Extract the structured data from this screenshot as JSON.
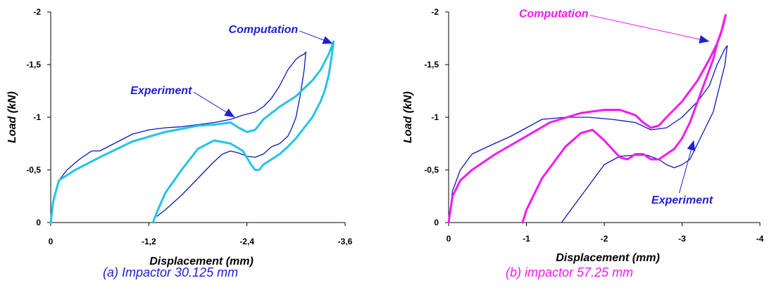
{
  "chart_data": [
    {
      "type": "line",
      "xlabel": "Displacement (mm)",
      "ylabel": "Load (kN)",
      "xlim": [
        0,
        -3.6
      ],
      "ylim": [
        0,
        -2
      ],
      "x_ticks": [
        0,
        -1.2,
        -2.4,
        -3.6
      ],
      "x_tick_labels": [
        "0",
        "-1,2",
        "-2,4",
        "-3,6"
      ],
      "y_ticks": [
        0,
        -0.5,
        -1,
        -1.5,
        -2
      ],
      "y_tick_labels": [
        "0",
        "-0,5",
        "-1",
        "-1,5",
        "-2"
      ],
      "grid": false,
      "caption": "(a) Impactor 30.125 mm",
      "caption_color": "#1F1FD0",
      "annotations": [
        {
          "text": "Computation",
          "color": "#1F1FD0",
          "target_series": "Computation",
          "target": [
            -3.45,
            -1.7
          ],
          "label_at": [
            -2.6,
            -1.8
          ]
        },
        {
          "text": "Experiment",
          "color": "#1F1FD0",
          "target_series": "Experiment",
          "target": [
            -2.25,
            -1.0
          ],
          "label_at": [
            -1.35,
            -1.22
          ]
        }
      ],
      "series": [
        {
          "name": "Experiment",
          "color": "#0A1AB4",
          "x": [
            0,
            -0.03,
            -0.1,
            -0.2,
            -0.35,
            -0.5,
            -0.6,
            -0.8,
            -1.0,
            -1.2,
            -1.4,
            -1.6,
            -1.8,
            -2.0,
            -2.2,
            -2.35,
            -2.5,
            -2.6,
            -2.7,
            -2.8,
            -2.9,
            -3.0,
            -3.05,
            -3.1,
            -3.12,
            -3.1,
            -3.05,
            -3.0,
            -2.95,
            -2.9,
            -2.8,
            -2.7,
            -2.6,
            -2.5,
            -2.4,
            -2.3,
            -2.2,
            -2.1,
            -2.0,
            -1.9,
            -1.8,
            -1.6,
            -1.4,
            -1.3
          ],
          "y": [
            0,
            -0.2,
            -0.4,
            -0.5,
            -0.6,
            -0.68,
            -0.68,
            -0.76,
            -0.84,
            -0.88,
            -0.9,
            -0.91,
            -0.93,
            -0.95,
            -0.98,
            -1.02,
            -1.05,
            -1.1,
            -1.18,
            -1.3,
            -1.45,
            -1.55,
            -1.58,
            -1.6,
            -1.62,
            -1.45,
            -1.2,
            -1.0,
            -0.9,
            -0.82,
            -0.75,
            -0.72,
            -0.65,
            -0.62,
            -0.63,
            -0.66,
            -0.68,
            -0.65,
            -0.58,
            -0.5,
            -0.42,
            -0.26,
            -0.12,
            -0.06
          ]
        },
        {
          "name": "Computation",
          "color": "#22C4E8",
          "x": [
            0,
            -0.03,
            -0.1,
            -0.3,
            -0.6,
            -1.0,
            -1.4,
            -1.8,
            -2.0,
            -2.2,
            -2.3,
            -2.4,
            -2.5,
            -2.6,
            -2.8,
            -3.0,
            -3.2,
            -3.3,
            -3.4,
            -3.45,
            -3.46,
            -3.44,
            -3.42,
            -3.4,
            -3.35,
            -3.3,
            -3.2,
            -3.1,
            -3.0,
            -2.9,
            -2.8,
            -2.7,
            -2.6,
            -2.55,
            -2.5,
            -2.45,
            -2.35,
            -2.2,
            -2.0,
            -1.8,
            -1.6,
            -1.4,
            -1.3,
            -1.25
          ],
          "y": [
            0,
            -0.2,
            -0.4,
            -0.5,
            -0.62,
            -0.77,
            -0.86,
            -0.92,
            -0.93,
            -0.95,
            -0.9,
            -0.86,
            -0.88,
            -0.98,
            -1.1,
            -1.2,
            -1.35,
            -1.45,
            -1.6,
            -1.7,
            -1.72,
            -1.6,
            -1.5,
            -1.4,
            -1.25,
            -1.15,
            -1.0,
            -0.9,
            -0.8,
            -0.72,
            -0.65,
            -0.6,
            -0.55,
            -0.5,
            -0.5,
            -0.55,
            -0.68,
            -0.75,
            -0.78,
            -0.7,
            -0.5,
            -0.28,
            -0.1,
            0
          ]
        }
      ]
    },
    {
      "type": "line",
      "xlabel": "Displacement (mm)",
      "ylabel": "Load (kN)",
      "xlim": [
        0,
        -4
      ],
      "ylim": [
        0,
        -2
      ],
      "x_ticks": [
        0,
        -1,
        -2,
        -3,
        -4
      ],
      "x_tick_labels": [
        "0",
        "-1",
        "-2",
        "-3",
        "-4"
      ],
      "y_ticks": [
        0,
        -0.5,
        -1,
        -1.5,
        -2
      ],
      "y_tick_labels": [
        "0",
        "-0,5",
        "-1",
        "-1,5",
        "-2"
      ],
      "grid": false,
      "caption": "(b) impactor 57.25 mm",
      "caption_color": "#F21AEE",
      "annotations": [
        {
          "text": "Computation",
          "color": "#F21AEE",
          "target_series": "Computation",
          "target": [
            -3.35,
            -1.72
          ],
          "label_at": [
            -1.35,
            -1.95
          ]
        },
        {
          "text": "Experiment",
          "color": "#1F1FD0",
          "target_series": "Experiment",
          "target": [
            -3.15,
            -0.78
          ],
          "label_at": [
            -3.0,
            -0.18
          ]
        }
      ],
      "series": [
        {
          "name": "Experiment",
          "color": "#0A1AB4",
          "x": [
            0,
            -0.05,
            -0.15,
            -0.3,
            -0.5,
            -0.8,
            -1.0,
            -1.2,
            -1.5,
            -1.8,
            -2.1,
            -2.4,
            -2.6,
            -2.8,
            -3.0,
            -3.2,
            -3.35,
            -3.45,
            -3.55,
            -3.58,
            -3.55,
            -3.5,
            -3.45,
            -3.4,
            -3.3,
            -3.2,
            -3.1,
            -3.0,
            -2.9,
            -2.8,
            -2.7,
            -2.55,
            -2.4,
            -2.2,
            -2.0,
            -1.8,
            -1.6,
            -1.45
          ],
          "y": [
            0,
            -0.3,
            -0.5,
            -0.65,
            -0.72,
            -0.82,
            -0.9,
            -0.98,
            -1.0,
            -1.0,
            -0.98,
            -0.95,
            -0.88,
            -0.9,
            -1.0,
            -1.15,
            -1.3,
            -1.5,
            -1.65,
            -1.68,
            -1.5,
            -1.35,
            -1.2,
            -1.05,
            -0.9,
            -0.75,
            -0.6,
            -0.55,
            -0.52,
            -0.55,
            -0.6,
            -0.64,
            -0.64,
            -0.63,
            -0.55,
            -0.35,
            -0.15,
            0
          ]
        },
        {
          "name": "Computation",
          "color": "#F21AEE",
          "x": [
            0,
            -0.05,
            -0.15,
            -0.3,
            -0.6,
            -1.0,
            -1.3,
            -1.7,
            -2.0,
            -2.2,
            -2.4,
            -2.5,
            -2.6,
            -2.7,
            -2.8,
            -3.0,
            -3.2,
            -3.35,
            -3.45,
            -3.5,
            -3.55,
            -3.56,
            -3.52,
            -3.45,
            -3.4,
            -3.3,
            -3.2,
            -3.1,
            -3.0,
            -2.9,
            -2.8,
            -2.7,
            -2.6,
            -2.5,
            -2.4,
            -2.3,
            -2.2,
            -2.0,
            -1.85,
            -1.7,
            -1.5,
            -1.2,
            -1.0,
            -0.95
          ],
          "y": [
            0,
            -0.25,
            -0.4,
            -0.5,
            -0.65,
            -0.82,
            -0.95,
            -1.04,
            -1.07,
            -1.07,
            -1.02,
            -0.95,
            -0.9,
            -0.92,
            -1.0,
            -1.15,
            -1.35,
            -1.55,
            -1.7,
            -1.8,
            -1.95,
            -1.97,
            -1.85,
            -1.7,
            -1.55,
            -1.35,
            -1.15,
            -0.95,
            -0.8,
            -0.7,
            -0.65,
            -0.6,
            -0.6,
            -0.65,
            -0.65,
            -0.6,
            -0.62,
            -0.78,
            -0.88,
            -0.85,
            -0.72,
            -0.42,
            -0.12,
            0
          ]
        }
      ]
    }
  ]
}
